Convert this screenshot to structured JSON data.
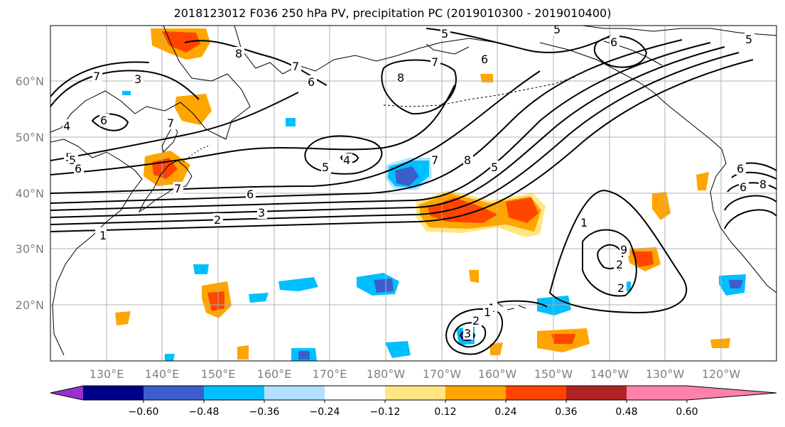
{
  "title": "2018123012 F036 250 hPa PV, precipitation PC (2019010300 - 2019010400)",
  "lat_labels": [
    "60°N",
    "50°N",
    "40°N",
    "30°N",
    "20°N"
  ],
  "lon_labels": [
    "130°E",
    "140°E",
    "150°E",
    "160°E",
    "170°E",
    "180°W",
    "170°W",
    "160°W",
    "150°W",
    "140°W",
    "130°W",
    "120°W"
  ],
  "contour_labels": [
    "7",
    "3",
    "8",
    "7",
    "6",
    "5",
    "2",
    "6",
    "5",
    "8",
    "5",
    "6",
    "7",
    "4",
    "5",
    "6",
    "5",
    "4",
    "7",
    "8",
    "5",
    "7",
    "6",
    "6",
    "3",
    "2",
    "2",
    "1",
    "1",
    "4",
    "2",
    "1",
    "2",
    "3",
    "1",
    "2",
    "7",
    "6",
    "8",
    "9",
    "5",
    "6"
  ],
  "colorbar": {
    "ticks": [
      "−0.60",
      "−0.48",
      "−0.36",
      "−0.24",
      "−0.12",
      "0.12",
      "0.24",
      "0.36",
      "0.48",
      "0.60"
    ],
    "colors": [
      "#9932cc",
      "#00008b",
      "#3a5fcd",
      "#00bfff",
      "#b0e2ff",
      "#ffffff",
      "#ffe682",
      "#ffa500",
      "#ff4500",
      "#b22222",
      "#ff82ab"
    ]
  },
  "fill_colors": {
    "neg_light": "#b0e2ff",
    "neg_mid": "#00bfff",
    "neg_strong": "#3a5fcd",
    "pos_light": "#ffe682",
    "pos_mid": "#ffa500",
    "pos_strong": "#ff4500"
  }
}
